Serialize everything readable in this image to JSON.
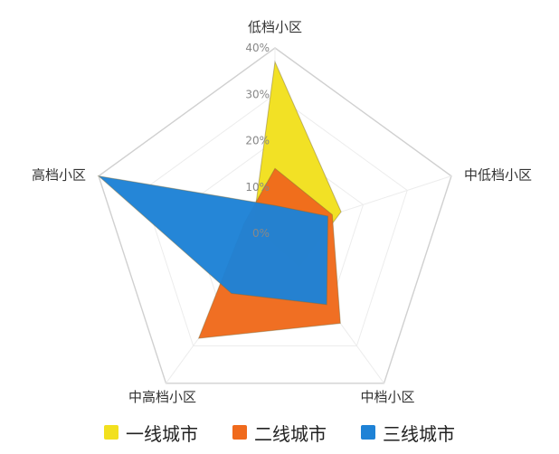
{
  "chart_data": {
    "type": "radar",
    "categories": [
      "低档小区",
      "中低档小区",
      "中档小区",
      "中高档小区",
      "高档小区"
    ],
    "series": [
      {
        "name": "一线城市",
        "color": "#F2E01E",
        "values": [
          37,
          15,
          9,
          2,
          5
        ]
      },
      {
        "name": "二线城市",
        "color": "#F06A1C",
        "values": [
          14,
          13,
          24,
          28,
          7
        ]
      },
      {
        "name": "三线城市",
        "color": "#1E82D6",
        "values": [
          6,
          12,
          19,
          16,
          40
        ]
      }
    ],
    "ticks": [
      "0%",
      "10%",
      "20%",
      "30%",
      "40%"
    ],
    "rlim": [
      0,
      40
    ],
    "grid": true,
    "legend_position": "bottom"
  }
}
